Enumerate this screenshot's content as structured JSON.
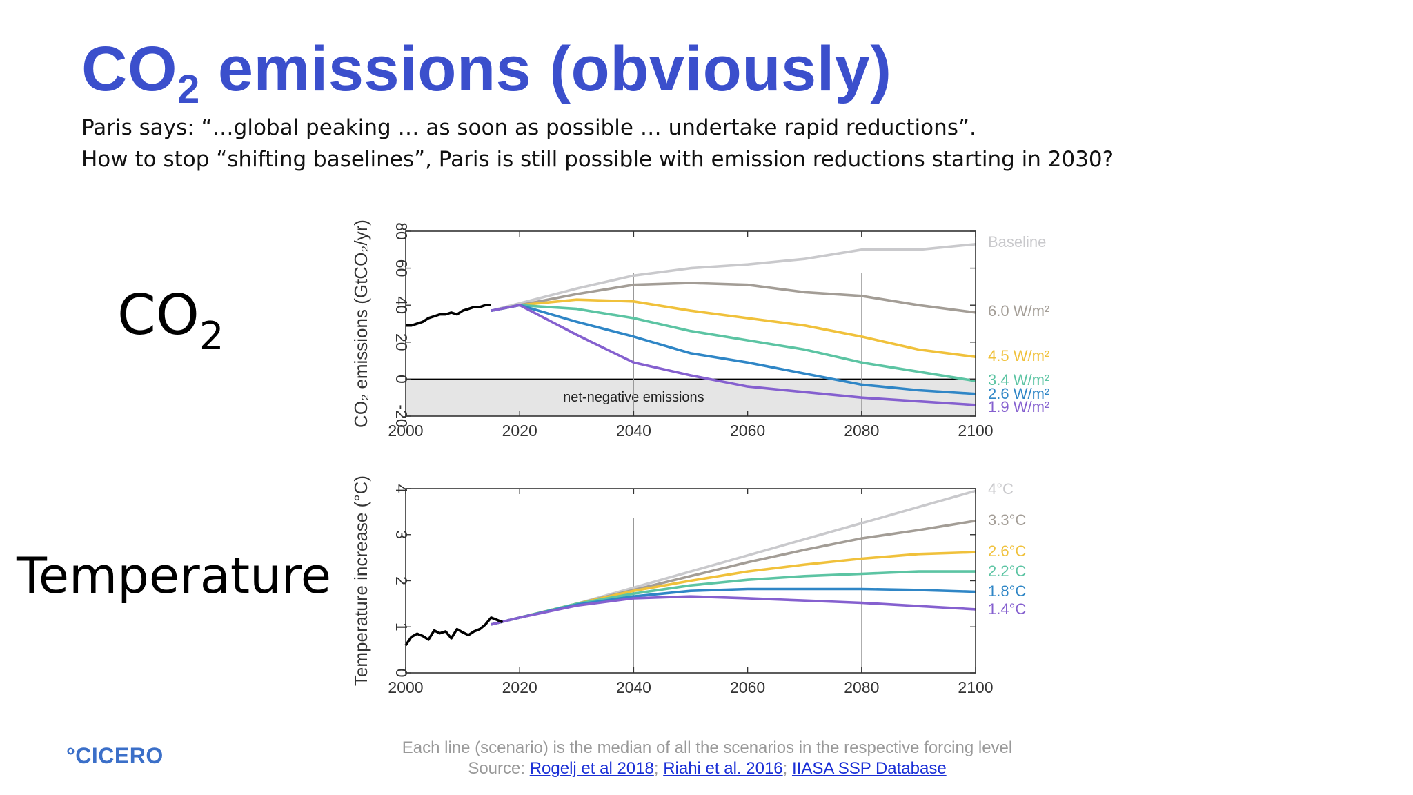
{
  "slide": {
    "title_main": "CO",
    "title_sub": "2",
    "title_rest": " emissions (obviously)",
    "subtitle_line1": "Paris says: “…global peaking … as soon as possible … undertake rapid reductions”.",
    "subtitle_line2": "How to stop “shifting baselines”, Paris is still possible with emission reductions starting in 2030?",
    "row_label_co2_main": "CO",
    "row_label_co2_sub": "2",
    "row_label_temperature": "Temperature",
    "footnote": "Each line (scenario) is the median of all the scenarios in the respective forcing level",
    "source_label": "Source:",
    "source_links": [
      "Rogelj et al 2018",
      "Riahi et al. 2016",
      "IIASA SSP Database"
    ],
    "source_sep": ";",
    "logo_text": "°CICERO"
  },
  "colors": {
    "title": "#3b4fcc",
    "baseline": "#c9c9cc",
    "w60": "#a39d96",
    "w45": "#f0c13b",
    "w34": "#5cc4a3",
    "w26": "#2f86c6",
    "w19": "#8560cf",
    "historical": "#000000",
    "negative_fill": "#e5e5e5"
  },
  "chart_data": [
    {
      "type": "line",
      "ylabel": "CO₂ emissions (GtCO₂/yr)",
      "xlim": [
        2000,
        2100
      ],
      "ylim": [
        -20,
        80
      ],
      "xticks": [
        2000,
        2020,
        2040,
        2060,
        2080,
        2100
      ],
      "yticks": [
        -20,
        0,
        20,
        40,
        60,
        80
      ],
      "annotation": "net-negative emissions",
      "x": [
        2015,
        2020,
        2030,
        2040,
        2050,
        2060,
        2070,
        2080,
        2090,
        2100
      ],
      "series": [
        {
          "name": "Baseline",
          "color_key": "baseline",
          "values": [
            37,
            41,
            49,
            56,
            60,
            62,
            65,
            70,
            70,
            73
          ]
        },
        {
          "name": "6.0 W/m²",
          "color_key": "w60",
          "values": [
            37,
            40,
            46,
            51,
            52,
            51,
            47,
            45,
            40,
            36
          ]
        },
        {
          "name": "4.5 W/m²",
          "color_key": "w45",
          "values": [
            37,
            40,
            43,
            42,
            37,
            33,
            29,
            23,
            16,
            12
          ]
        },
        {
          "name": "3.4 W/m²",
          "color_key": "w34",
          "values": [
            37,
            40,
            38,
            33,
            26,
            21,
            16,
            9,
            4,
            -1
          ]
        },
        {
          "name": "2.6 W/m²",
          "color_key": "w26",
          "values": [
            37,
            40,
            31,
            23,
            14,
            9,
            3,
            -3,
            -6,
            -8
          ]
        },
        {
          "name": "1.9 W/m²",
          "color_key": "w19",
          "values": [
            37,
            40,
            24,
            9,
            2,
            -4,
            -7,
            -10,
            -12,
            -14
          ]
        }
      ],
      "historical": {
        "x": [
          2000,
          2001,
          2002,
          2003,
          2004,
          2005,
          2006,
          2007,
          2008,
          2009,
          2010,
          2011,
          2012,
          2013,
          2014,
          2015
        ],
        "values": [
          29,
          29,
          30,
          31,
          33,
          34,
          35,
          35,
          36,
          35,
          37,
          38,
          39,
          39,
          40,
          40
        ]
      }
    },
    {
      "type": "line",
      "ylabel": "Temperature increase (°C)",
      "xlim": [
        2000,
        2100
      ],
      "ylim": [
        0,
        4
      ],
      "xticks": [
        2000,
        2020,
        2040,
        2060,
        2080,
        2100
      ],
      "yticks": [
        0,
        1,
        2,
        3,
        4
      ],
      "x": [
        2015,
        2020,
        2030,
        2040,
        2050,
        2060,
        2070,
        2080,
        2090,
        2100
      ],
      "series": [
        {
          "name": "4°C",
          "color_key": "baseline",
          "values": [
            1.05,
            1.2,
            1.5,
            1.85,
            2.2,
            2.55,
            2.9,
            3.25,
            3.6,
            3.95
          ]
        },
        {
          "name": "3.3°C",
          "color_key": "w60",
          "values": [
            1.05,
            1.2,
            1.5,
            1.8,
            2.1,
            2.4,
            2.67,
            2.92,
            3.1,
            3.3
          ]
        },
        {
          "name": "2.6°C",
          "color_key": "w45",
          "values": [
            1.05,
            1.2,
            1.5,
            1.78,
            2.0,
            2.2,
            2.35,
            2.48,
            2.58,
            2.62
          ]
        },
        {
          "name": "2.2°C",
          "color_key": "w34",
          "values": [
            1.05,
            1.2,
            1.5,
            1.72,
            1.9,
            2.02,
            2.1,
            2.15,
            2.2,
            2.2
          ]
        },
        {
          "name": "1.8°C",
          "color_key": "w26",
          "values": [
            1.05,
            1.2,
            1.48,
            1.66,
            1.78,
            1.82,
            1.82,
            1.82,
            1.8,
            1.76
          ]
        },
        {
          "name": "1.4°C",
          "color_key": "w19",
          "values": [
            1.05,
            1.2,
            1.46,
            1.62,
            1.66,
            1.62,
            1.57,
            1.52,
            1.45,
            1.38
          ]
        }
      ],
      "historical": {
        "x": [
          2000,
          2001,
          2002,
          2003,
          2004,
          2005,
          2006,
          2007,
          2008,
          2009,
          2010,
          2011,
          2012,
          2013,
          2014,
          2015,
          2016,
          2017
        ],
        "values": [
          0.6,
          0.78,
          0.85,
          0.8,
          0.72,
          0.92,
          0.86,
          0.9,
          0.75,
          0.95,
          0.88,
          0.82,
          0.9,
          0.95,
          1.05,
          1.2,
          1.15,
          1.1
        ]
      }
    }
  ]
}
